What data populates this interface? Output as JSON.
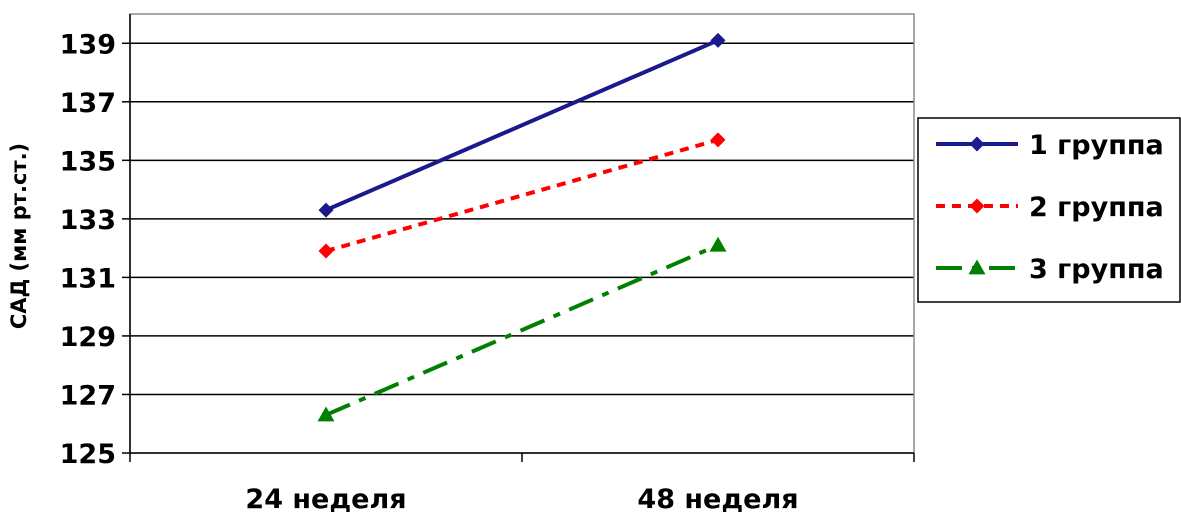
{
  "chart_data": {
    "type": "line",
    "categories": [
      "24 неделя",
      "48 неделя"
    ],
    "ylabel": "САД (мм рт.ст.)",
    "ylim": [
      125,
      140
    ],
    "yticks": [
      125,
      127,
      129,
      131,
      133,
      135,
      137,
      139
    ],
    "grid": true,
    "legend": "right",
    "series": [
      {
        "name": "1 группа",
        "values": [
          133.3,
          139.1
        ],
        "color": "#1a1a8c",
        "dash": "solid",
        "marker": "diamond"
      },
      {
        "name": "2 группа",
        "values": [
          131.9,
          135.7
        ],
        "color": "#ff0000",
        "dash": "dot",
        "marker": "diamond"
      },
      {
        "name": "3 группа",
        "values": [
          126.3,
          132.1
        ],
        "color": "#008000",
        "dash": "dashdot",
        "marker": "triangle"
      }
    ]
  }
}
